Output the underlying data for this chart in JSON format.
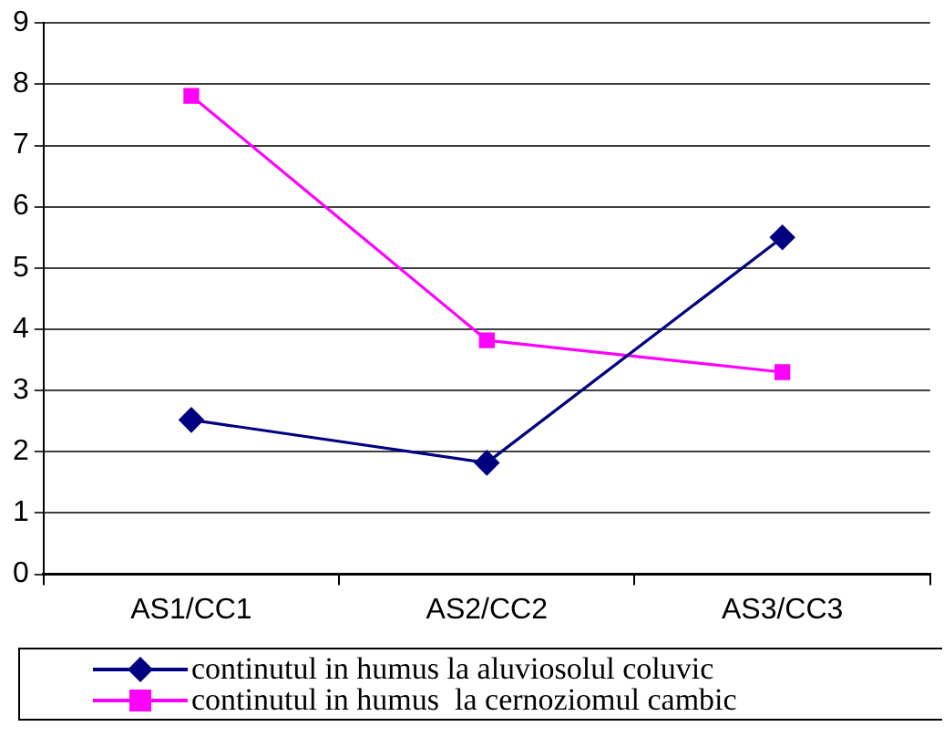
{
  "chart_data": {
    "type": "line",
    "categories": [
      "AS1/CC1",
      "AS2/CC2",
      "AS3/CC3"
    ],
    "series": [
      {
        "name": "continutul in humus la aluviosolul coluvic",
        "color": "#000080",
        "marker": "diamond",
        "values": [
          2.52,
          1.82,
          5.5
        ]
      },
      {
        "name": "continutul in humus  la cernoziomul cambic",
        "color": "#ff00ff",
        "marker": "square",
        "values": [
          7.81,
          3.82,
          3.3
        ]
      }
    ],
    "ylim": [
      0,
      9
    ],
    "yticks": [
      0,
      1,
      2,
      3,
      4,
      5,
      6,
      7,
      8,
      9
    ],
    "grid": "y",
    "legend": "bottom",
    "line_style": "solid"
  }
}
